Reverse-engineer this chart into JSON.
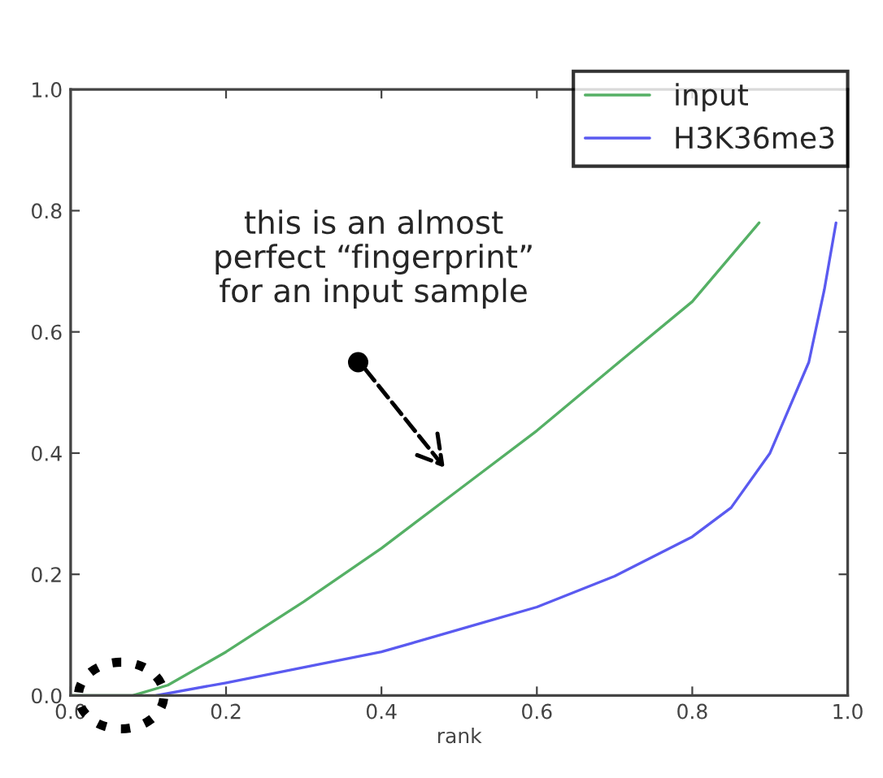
{
  "chart_data": {
    "type": "line",
    "xlabel": "rank",
    "xlim": [
      0,
      1
    ],
    "ylim": [
      0,
      1
    ],
    "xticks": [
      {
        "value": 0,
        "label": "0.0"
      },
      0.2,
      0.4,
      0.6,
      0.8,
      {
        "value": 1,
        "label": "1.0"
      }
    ],
    "yticks": [
      {
        "value": 0,
        "label": "0.0"
      },
      0.2,
      0.4,
      0.6,
      0.8,
      {
        "value": 1,
        "label": "1.0"
      }
    ],
    "series": [
      {
        "name": "input",
        "color": "#55b065",
        "x": [
          0,
          0.08,
          0.125,
          0.2,
          0.3,
          0.4,
          0.5,
          0.6,
          0.7,
          0.8,
          0.886
        ],
        "values": [
          0,
          0,
          0.017,
          0.072,
          0.155,
          0.243,
          0.34,
          0.437,
          0.544,
          0.65,
          0.78
        ]
      },
      {
        "name": "H3K36me3",
        "color": "#5a5af0",
        "x": [
          0.11,
          0.2,
          0.4,
          0.6,
          0.7,
          0.8,
          0.85,
          0.9,
          0.95,
          0.97,
          0.985
        ],
        "values": [
          0,
          0.021,
          0.072,
          0.146,
          0.197,
          0.262,
          0.31,
          0.4,
          0.55,
          0.67,
          0.78
        ]
      }
    ],
    "grid": false,
    "legend": "top right",
    "marker": "none",
    "line_style": "solid",
    "annotations": [
      "this is an almost\nperfect “fingerprint”\nfor an input sample"
    ]
  }
}
